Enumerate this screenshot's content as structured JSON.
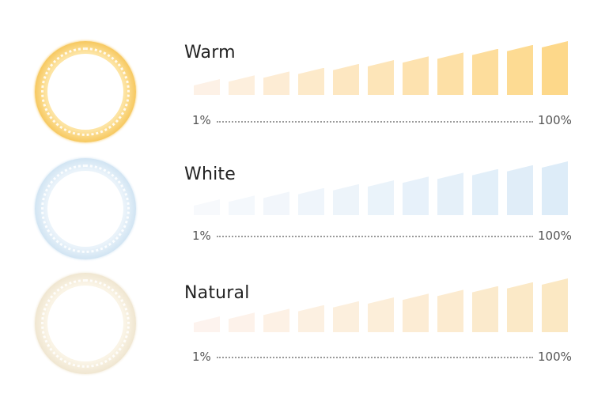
{
  "modes": [
    {
      "title": "Warm",
      "min_label": "1%",
      "max_label": "100%",
      "ring_outer": "#f6c65a",
      "ring_mid": "#fde4a3",
      "bar_from": "#fdf1e6",
      "bar_to": "#fdd88a",
      "icon": "warm-ring-light-icon"
    },
    {
      "title": "White",
      "min_label": "1%",
      "max_label": "100%",
      "ring_outer": "#cfe3f2",
      "ring_mid": "#eaf3fa",
      "bar_from": "#f7f9fc",
      "bar_to": "#ddecf8",
      "icon": "white-ring-light-icon"
    },
    {
      "title": "Natural",
      "min_label": "1%",
      "max_label": "100%",
      "ring_outer": "#efe5cf",
      "ring_mid": "#faf4e6",
      "bar_from": "#fdf3ee",
      "bar_to": "#fbe8c3",
      "icon": "natural-ring-light-icon"
    }
  ]
}
